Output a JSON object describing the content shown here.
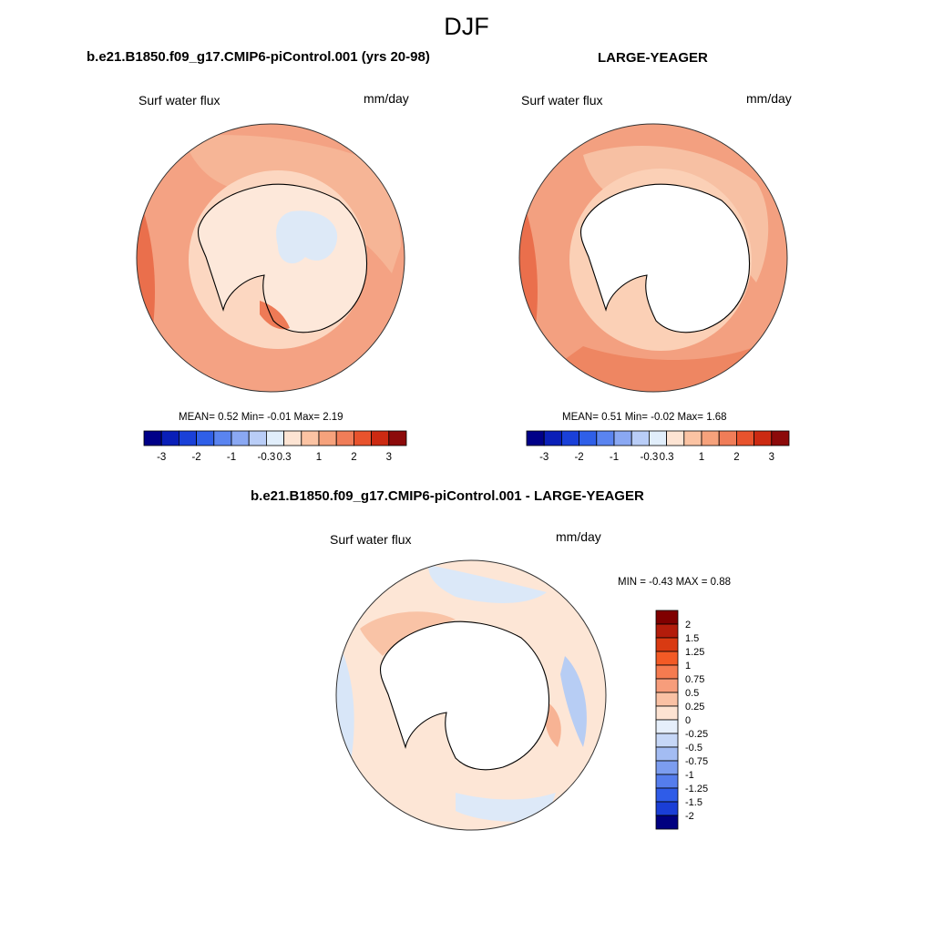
{
  "main_title": "DJF",
  "chart_data": [
    {
      "type": "heatmap",
      "projection": "south-polar-stereographic",
      "title": "b.e21.B1850.f09_g17.CMIP6-piControl.001 (yrs 20-98)",
      "variable": "Surf water flux",
      "units": "mm/day",
      "stats_label": "MEAN=   0.52  Min=  -0.01  Max=   2.19",
      "stats": {
        "mean": 0.52,
        "min": -0.01,
        "max": 2.19
      },
      "colorbar": {
        "orientation": "horizontal",
        "boundaries": [
          -3,
          -2.5,
          -2,
          -1.5,
          -1,
          -0.5,
          -0.3,
          0,
          0.3,
          0.5,
          1,
          1.5,
          2,
          2.5,
          3
        ],
        "tick_labels": [
          "-3",
          "-2",
          "-1",
          "-0.3",
          "0.3",
          "1",
          "2",
          "3"
        ],
        "colors": [
          "#000088",
          "#0a1fb8",
          "#1a40d8",
          "#2f5fe8",
          "#5a84f0",
          "#8aa8f3",
          "#b9cdf7",
          "#e1eefb",
          "#fde4d3",
          "#fbc3a3",
          "#f6a27c",
          "#f07d58",
          "#e8532d",
          "#cc2a12",
          "#8c0a0a"
        ]
      }
    },
    {
      "type": "heatmap",
      "projection": "south-polar-stereographic",
      "title": "LARGE-YEAGER",
      "variable": "Surf water flux",
      "units": "mm/day",
      "stats_label": "MEAN=   0.51  Min=  -0.02  Max=   1.68",
      "stats": {
        "mean": 0.51,
        "min": -0.02,
        "max": 1.68
      },
      "colorbar": {
        "orientation": "horizontal",
        "boundaries": [
          -3,
          -2.5,
          -2,
          -1.5,
          -1,
          -0.5,
          -0.3,
          0,
          0.3,
          0.5,
          1,
          1.5,
          2,
          2.5,
          3
        ],
        "tick_labels": [
          "-3",
          "-2",
          "-1",
          "-0.3",
          "0.3",
          "1",
          "2",
          "3"
        ],
        "colors": [
          "#000088",
          "#0a1fb8",
          "#1a40d8",
          "#2f5fe8",
          "#5a84f0",
          "#8aa8f3",
          "#b9cdf7",
          "#e1eefb",
          "#fde4d3",
          "#fbc3a3",
          "#f6a27c",
          "#f07d58",
          "#e8532d",
          "#cc2a12",
          "#8c0a0a"
        ]
      }
    },
    {
      "type": "heatmap",
      "projection": "south-polar-stereographic",
      "title": "b.e21.B1850.f09_g17.CMIP6-piControl.001 - LARGE-YEAGER",
      "variable": "Surf water flux",
      "units": "mm/day",
      "stats_label": "MIN =  -0.43 MAX =   0.88",
      "stats": {
        "min": -0.43,
        "max": 0.88
      },
      "colorbar": {
        "orientation": "vertical",
        "tick_labels": [
          "2",
          "1.5",
          "1.25",
          "1",
          "0.75",
          "0.5",
          "0.25",
          "0",
          "-0.25",
          "-0.5",
          "-0.75",
          "-1",
          "-1.25",
          "-1.5",
          "-2"
        ],
        "colors": [
          "#800000",
          "#b31c0b",
          "#d93a12",
          "#f35a25",
          "#f57b50",
          "#f79d7b",
          "#fac1a4",
          "#fde3d2",
          "#e6effb",
          "#c6d7f7",
          "#a3bcf3",
          "#7c9df0",
          "#557ded",
          "#2f5ce8",
          "#1a3ed6",
          "#000080"
        ]
      }
    }
  ]
}
